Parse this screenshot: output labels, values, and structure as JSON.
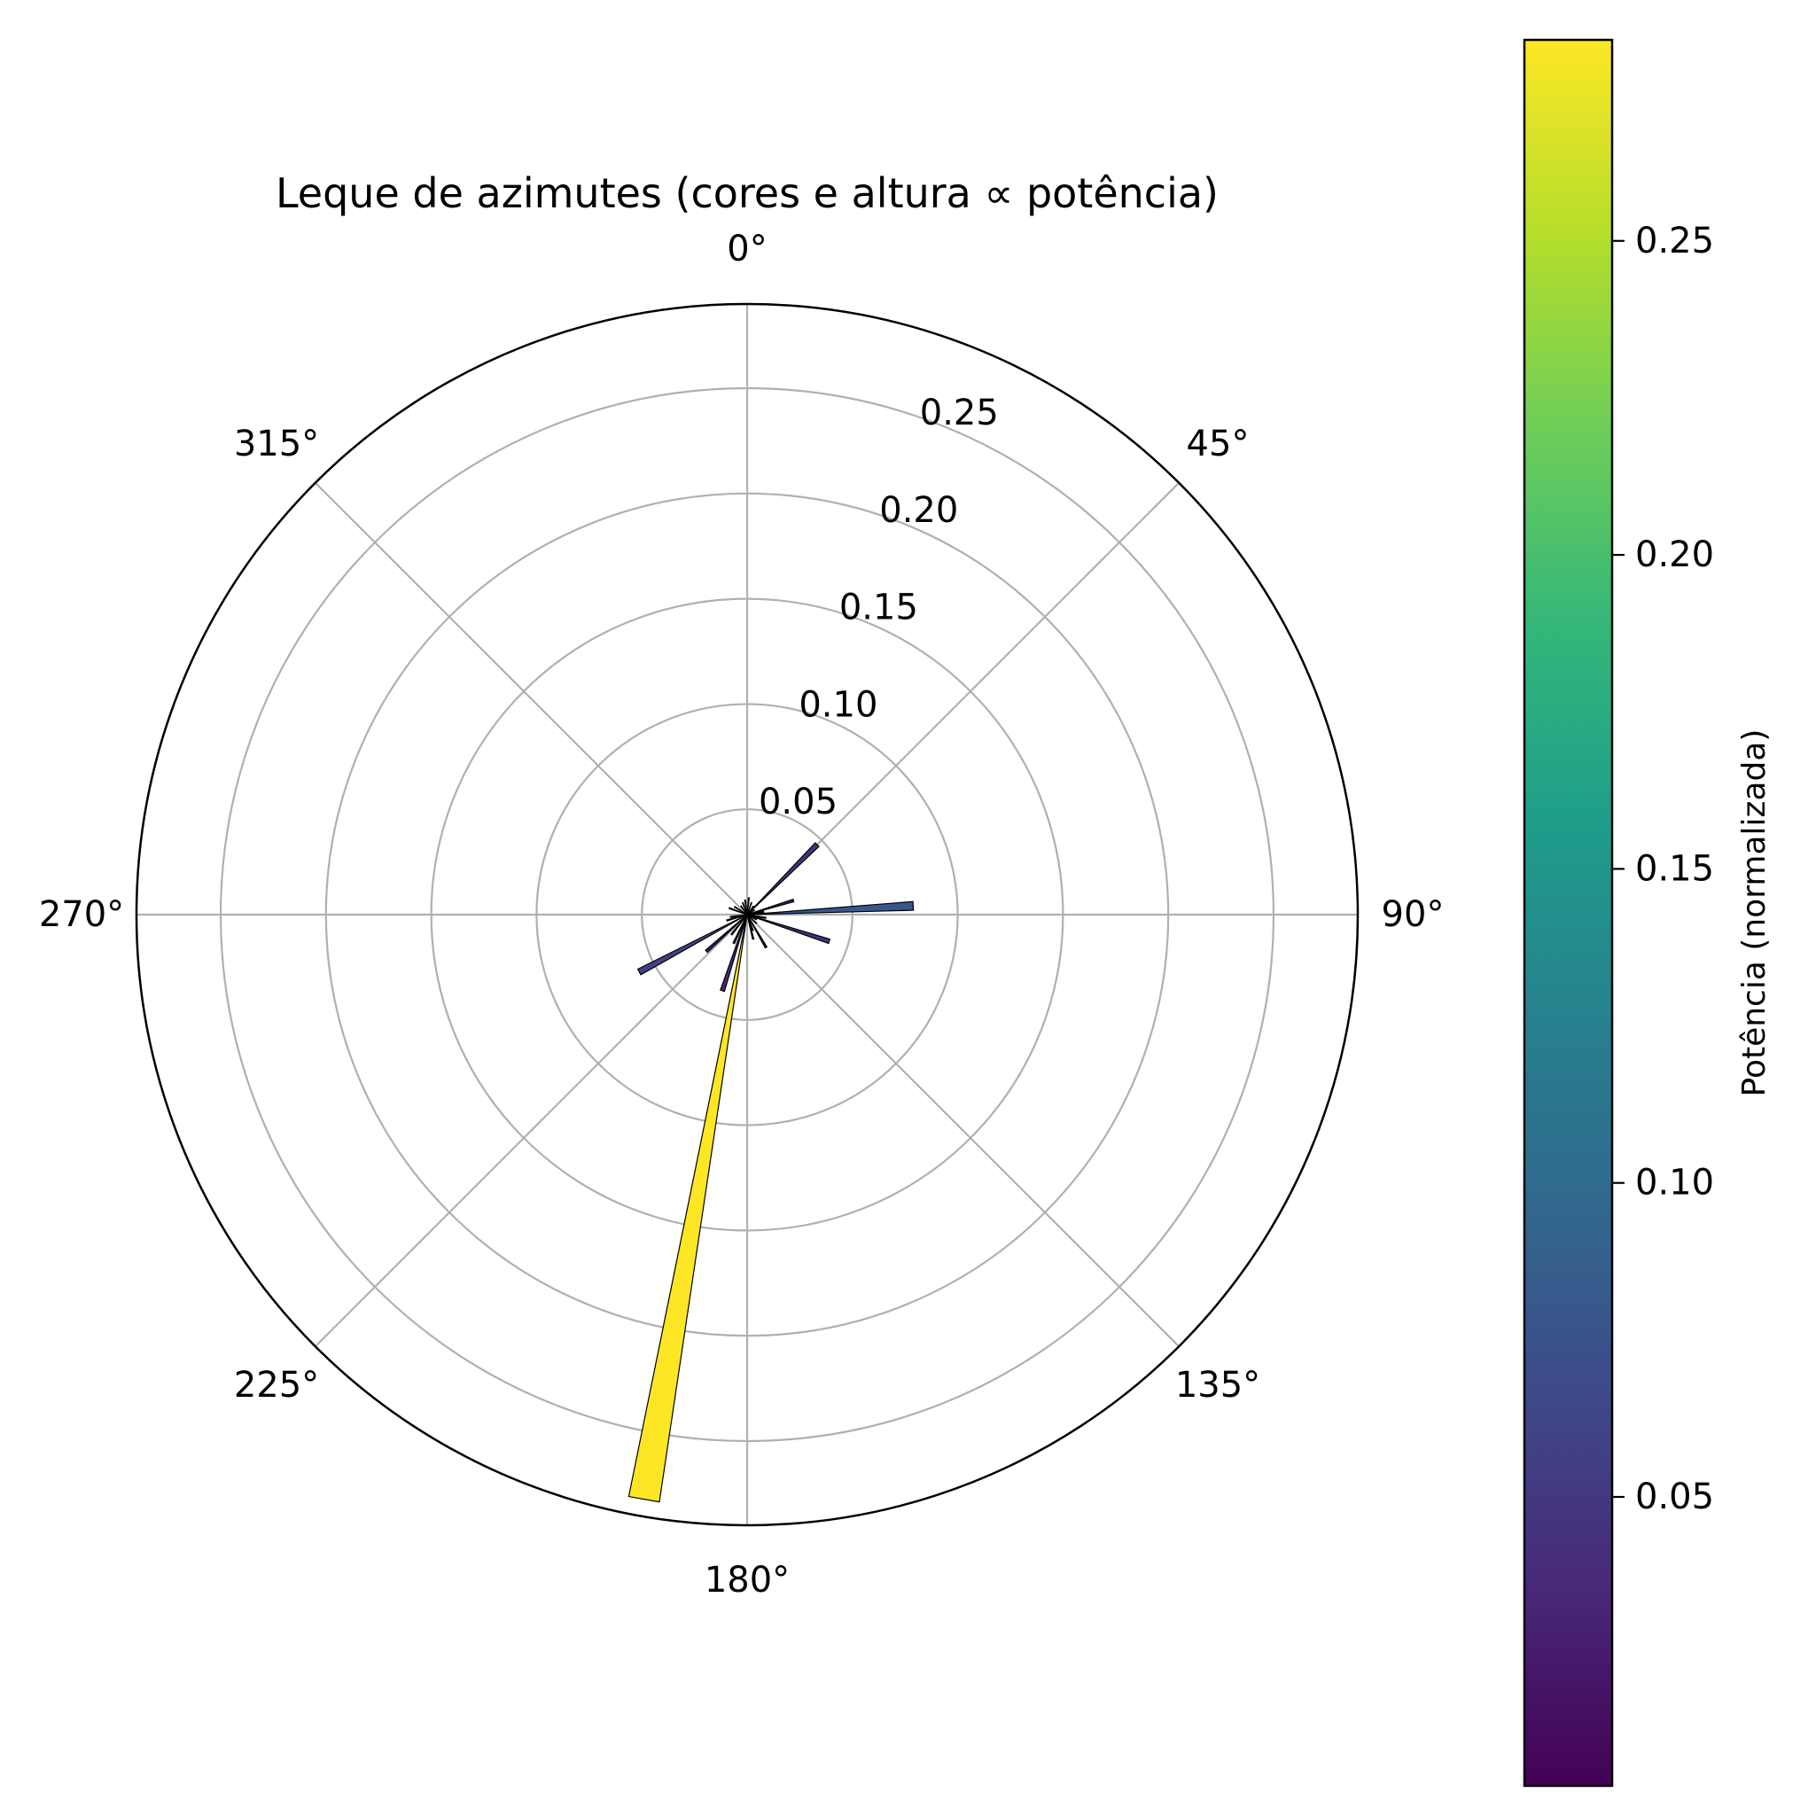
{
  "chart_data": {
    "type": "bar",
    "subtype": "polar",
    "title": "Leque de azimutes (cores e altura ∝ potência)",
    "theta_direction": "clockwise",
    "theta_zero": "top",
    "angle_ticks": [
      "0°",
      "45°",
      "90°",
      "135°",
      "180°",
      "225°",
      "270°",
      "315°"
    ],
    "angle_tick_values": [
      0,
      45,
      90,
      135,
      180,
      225,
      270,
      315
    ],
    "radial_ticks": [
      "0.05",
      "0.10",
      "0.15",
      "0.20",
      "0.25"
    ],
    "radial_tick_values": [
      0.05,
      0.1,
      0.15,
      0.2,
      0.25
    ],
    "rlim": [
      0,
      0.29
    ],
    "grid": true,
    "bar_width_deg": 3,
    "x_azimuth_deg": [
      6,
      20,
      37,
      45,
      58,
      73,
      80,
      87,
      100,
      108,
      118,
      133,
      150,
      160,
      166,
      190,
      198,
      205,
      218,
      228,
      242,
      254,
      262,
      290,
      302,
      325,
      340,
      352
    ],
    "values": [
      0.008,
      0.006,
      0.005,
      0.047,
      0.004,
      0.023,
      0.008,
      0.079,
      0.009,
      0.041,
      0.005,
      0.006,
      0.018,
      0.008,
      0.012,
      0.282,
      0.038,
      0.015,
      0.012,
      0.026,
      0.058,
      0.01,
      0.008,
      0.009,
      0.007,
      0.005,
      0.006,
      0.007
    ],
    "colormap": "viridis",
    "colorbar": {
      "label": "Potência (normalizada)",
      "ticks": [
        "0.05",
        "0.10",
        "0.15",
        "0.20",
        "0.25"
      ],
      "tick_values": [
        0.05,
        0.1,
        0.15,
        0.2,
        0.25
      ],
      "range": [
        0.004,
        0.282
      ],
      "colors": [
        "#440154",
        "#482878",
        "#3e4989",
        "#31688e",
        "#26828e",
        "#1f9e89",
        "#35b779",
        "#6ece58",
        "#b5de2b",
        "#fde725"
      ]
    }
  }
}
